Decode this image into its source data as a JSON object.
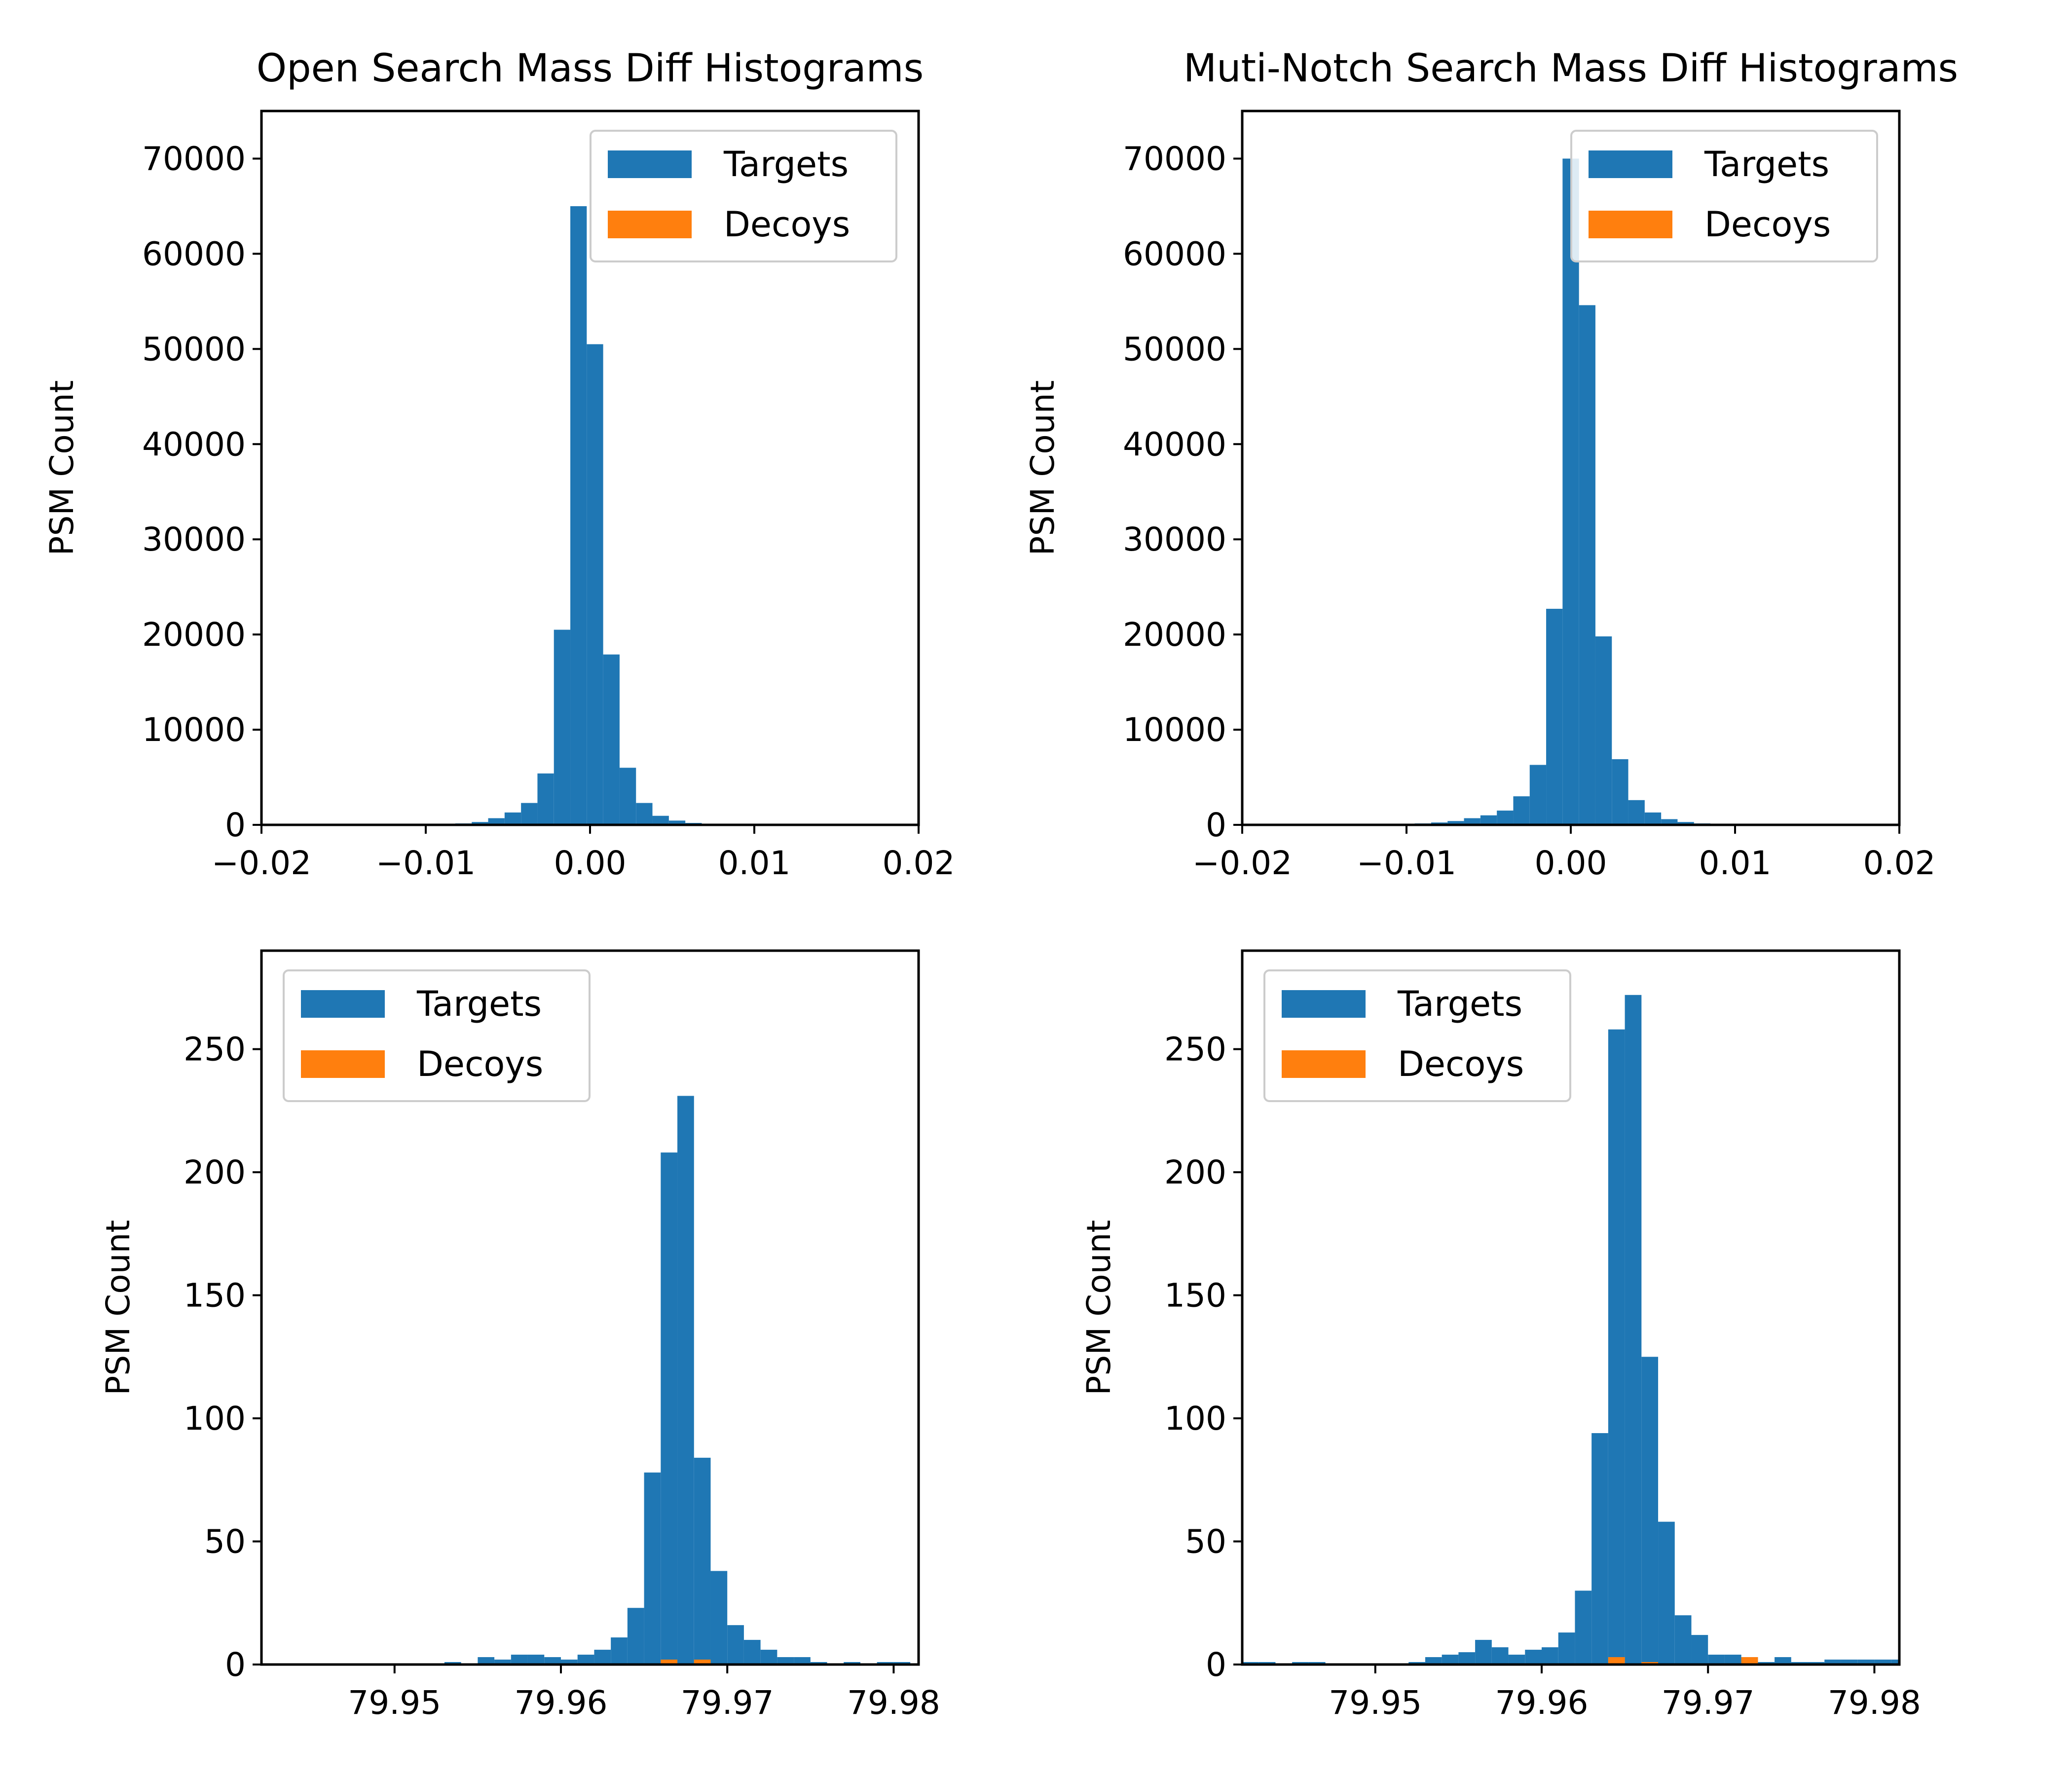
{
  "colors": {
    "targets": "#1f77b4",
    "decoys": "#ff7f0e"
  },
  "chart_data": [
    {
      "type": "bar",
      "title": "Open Search Mass Diff Histograms",
      "xlabel": "",
      "ylabel": "PSM Count",
      "xlim": [
        -0.02,
        0.02
      ],
      "ylim": [
        0,
        75000
      ],
      "xticks": [
        -0.02,
        -0.01,
        0.0,
        0.01,
        0.02
      ],
      "xtick_labels": [
        "−0.02",
        "−0.01",
        "0.00",
        "0.01",
        "0.02"
      ],
      "yticks": [
        0,
        10000,
        20000,
        30000,
        40000,
        50000,
        60000,
        70000
      ],
      "ytick_labels": [
        "0",
        "10000",
        "20000",
        "30000",
        "40000",
        "50000",
        "60000",
        "70000"
      ],
      "legend": {
        "location": "upper right",
        "entries": [
          "Targets",
          "Decoys"
        ]
      },
      "bin_edges": [
        -0.0082,
        -0.0072,
        -0.0062,
        -0.0052,
        -0.0042,
        -0.0032,
        -0.0022,
        -0.0012,
        -0.0002,
        0.0008,
        0.0018,
        0.0028,
        0.0038,
        0.0048,
        0.0058,
        0.0068,
        0.0078
      ],
      "series": [
        {
          "name": "Targets",
          "values": [
            150,
            300,
            700,
            1300,
            2300,
            5400,
            20500,
            65000,
            50500,
            17900,
            6000,
            2300,
            950,
            450,
            200,
            100
          ]
        },
        {
          "name": "Decoys",
          "values": [
            0,
            0,
            0,
            0,
            0,
            0,
            0,
            0,
            0,
            0,
            0,
            0,
            0,
            0,
            0,
            0
          ]
        }
      ]
    },
    {
      "type": "bar",
      "title": "Muti-Notch Search Mass Diff Histograms",
      "xlabel": "",
      "ylabel": "PSM Count",
      "xlim": [
        -0.02,
        0.02
      ],
      "ylim": [
        0,
        75000
      ],
      "xticks": [
        -0.02,
        -0.01,
        0.0,
        0.01,
        0.02
      ],
      "xtick_labels": [
        "−0.02",
        "−0.01",
        "0.00",
        "0.01",
        "0.02"
      ],
      "yticks": [
        0,
        10000,
        20000,
        30000,
        40000,
        50000,
        60000,
        70000
      ],
      "ytick_labels": [
        "0",
        "10000",
        "20000",
        "30000",
        "40000",
        "50000",
        "60000",
        "70000"
      ],
      "legend": {
        "location": "upper right",
        "entries": [
          "Targets",
          "Decoys"
        ]
      },
      "bin_edges": [
        -0.0095,
        -0.0085,
        -0.0075,
        -0.0065,
        -0.0055,
        -0.0045,
        -0.0035,
        -0.0025,
        -0.0015,
        -0.0005,
        0.0005,
        0.0015,
        0.0025,
        0.0035,
        0.0045,
        0.0055,
        0.0065,
        0.0075,
        0.0085
      ],
      "series": [
        {
          "name": "Targets",
          "values": [
            150,
            250,
            400,
            700,
            1000,
            1500,
            3000,
            6300,
            22700,
            70000,
            54600,
            19800,
            6900,
            2600,
            1300,
            600,
            300,
            150
          ]
        },
        {
          "name": "Decoys",
          "values": [
            0,
            0,
            0,
            0,
            0,
            0,
            0,
            0,
            0,
            0,
            0,
            0,
            0,
            0,
            0,
            0,
            0,
            0
          ]
        }
      ]
    },
    {
      "type": "bar",
      "title": "",
      "xlabel": "",
      "ylabel": "PSM Count",
      "xlim": [
        79.942,
        79.9815
      ],
      "ylim": [
        0,
        290
      ],
      "xticks": [
        79.95,
        79.96,
        79.97,
        79.98
      ],
      "xtick_labels": [
        "79.95",
        "79.96",
        "79.97",
        "79.98"
      ],
      "yticks": [
        0,
        50,
        100,
        150,
        200,
        250
      ],
      "ytick_labels": [
        "0",
        "50",
        "100",
        "150",
        "200",
        "250"
      ],
      "legend": {
        "location": "upper left",
        "entries": [
          "Targets",
          "Decoys"
        ]
      },
      "bin_edges": [
        79.953,
        79.954,
        79.955,
        79.956,
        79.957,
        79.958,
        79.959,
        79.96,
        79.961,
        79.962,
        79.963,
        79.964,
        79.965,
        79.966,
        79.967,
        79.968,
        79.969,
        79.97,
        79.971,
        79.972,
        79.973,
        79.974,
        79.975,
        79.976,
        79.977,
        79.978,
        79.979,
        79.98,
        79.981
      ],
      "series": [
        {
          "name": "Targets",
          "values": [
            1,
            0,
            3,
            2,
            4,
            4,
            3,
            2,
            4,
            6,
            11,
            23,
            78,
            208,
            231,
            84,
            38,
            16,
            10,
            6,
            3,
            3,
            1,
            0,
            1,
            0,
            1,
            1
          ]
        },
        {
          "name": "Decoys",
          "values": [
            0,
            0,
            0,
            0,
            0,
            0,
            0,
            0,
            0,
            0,
            0,
            0,
            0,
            2,
            0,
            2,
            0,
            0,
            0,
            0,
            0,
            0,
            0,
            0,
            0,
            0,
            0,
            0
          ]
        }
      ]
    },
    {
      "type": "bar",
      "title": "",
      "xlabel": "",
      "ylabel": "PSM Count",
      "xlim": [
        79.942,
        79.9815
      ],
      "ylim": [
        0,
        290
      ],
      "xticks": [
        79.95,
        79.96,
        79.97,
        79.98
      ],
      "xtick_labels": [
        "79.95",
        "79.96",
        "79.97",
        "79.98"
      ],
      "yticks": [
        0,
        50,
        100,
        150,
        200,
        250
      ],
      "ytick_labels": [
        "0",
        "50",
        "100",
        "150",
        "200",
        "250"
      ],
      "legend": {
        "location": "upper left",
        "entries": [
          "Targets",
          "Decoys"
        ]
      },
      "bin_edges": [
        79.942,
        79.943,
        79.944,
        79.945,
        79.946,
        79.947,
        79.948,
        79.949,
        79.95,
        79.951,
        79.952,
        79.953,
        79.954,
        79.955,
        79.956,
        79.957,
        79.958,
        79.959,
        79.96,
        79.961,
        79.962,
        79.963,
        79.964,
        79.965,
        79.966,
        79.967,
        79.968,
        79.969,
        79.97,
        79.971,
        79.972,
        79.973,
        79.974,
        79.975,
        79.976,
        79.977,
        79.978,
        79.979,
        79.98,
        79.981,
        79.9815
      ],
      "series": [
        {
          "name": "Targets",
          "values": [
            1,
            1,
            0,
            1,
            1,
            0,
            0,
            0,
            0,
            0,
            1,
            3,
            4,
            5,
            10,
            7,
            4,
            6,
            7,
            13,
            30,
            94,
            258,
            272,
            125,
            58,
            20,
            12,
            4,
            4,
            3,
            1,
            3,
            1,
            1,
            2,
            2,
            2,
            2,
            2
          ]
        },
        {
          "name": "Decoys",
          "values": [
            0,
            0,
            0,
            0,
            0,
            0,
            0,
            0,
            0,
            0,
            0,
            0,
            0,
            0,
            0,
            0,
            0,
            0,
            0,
            0,
            0,
            0,
            3,
            0,
            1,
            0,
            0,
            0,
            0,
            0,
            3,
            0,
            0,
            0,
            0,
            0,
            0,
            0,
            0,
            0
          ]
        }
      ]
    }
  ]
}
